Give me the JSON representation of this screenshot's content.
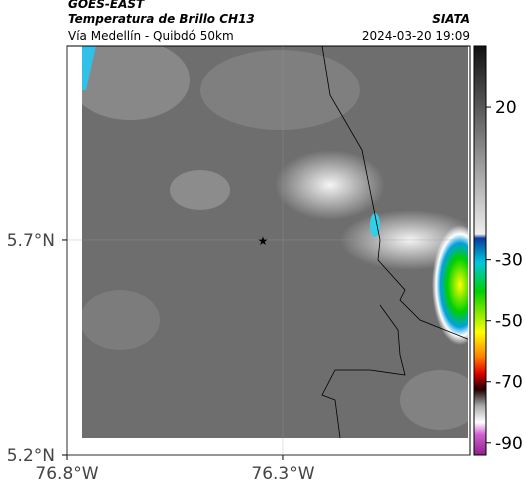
{
  "header": {
    "source": "GOES-EAST",
    "title": "Temperatura de Brillo CH13",
    "org": "SIATA",
    "route": "Vía Medellín - Quibdó 50km",
    "datetime": "2024-03-20 19:09"
  },
  "map": {
    "xlim": [
      -76.8,
      -75.867
    ],
    "ylim": [
      5.2,
      6.151
    ],
    "xticks": [
      {
        "value": -76.8,
        "label": "76.8°W"
      },
      {
        "value": -76.3,
        "label": "76.3°W"
      }
    ],
    "yticks": [
      {
        "value": 5.2,
        "label": "5.2°N"
      },
      {
        "value": 5.7,
        "label": "5.7°N"
      }
    ]
  },
  "colorbar": {
    "lim": [
      40,
      -94
    ],
    "ticks": [
      20,
      -30,
      -50,
      -70,
      -90
    ]
  }
}
